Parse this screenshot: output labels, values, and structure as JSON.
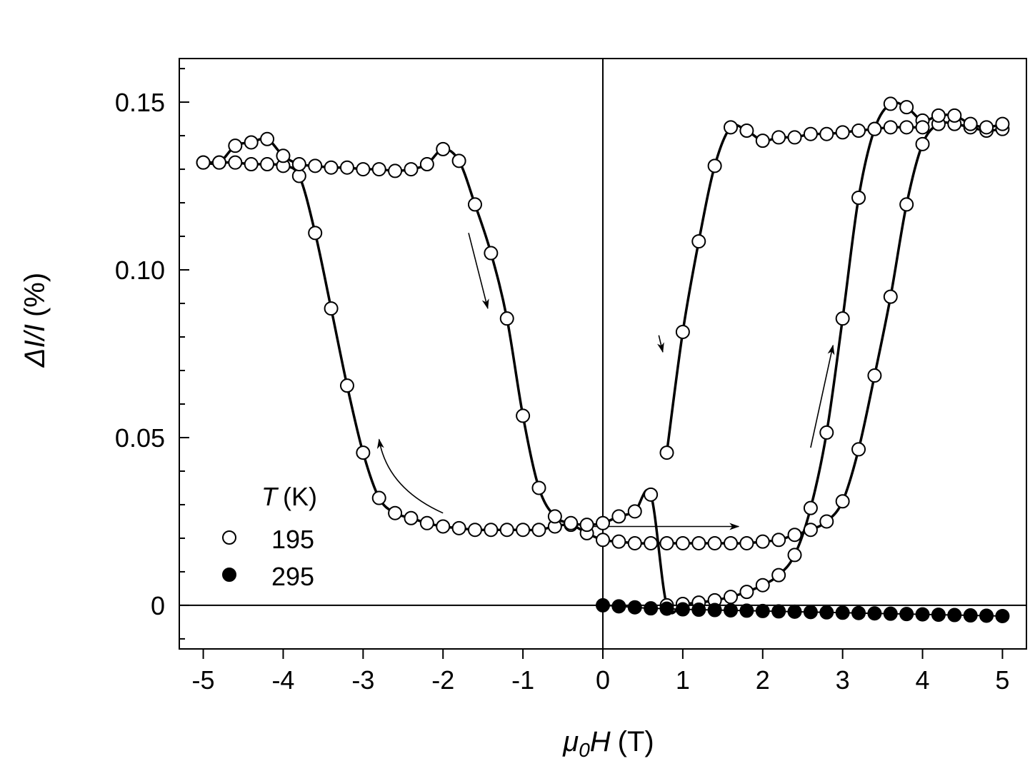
{
  "chart_data": {
    "type": "scatter",
    "xlabel": "μ0H (T)",
    "xlabel_parts": {
      "symbol": "μ",
      "sub": "0",
      "var": "H",
      "unit": "(T)"
    },
    "ylabel": "ΔI/I (%)",
    "ylabel_parts": {
      "symbol": "ΔI/I",
      "unit": "(%)"
    },
    "xlim": [
      -5.3,
      5.3
    ],
    "ylim": [
      -0.013,
      0.163
    ],
    "x_ticks": [
      -5,
      -4,
      -3,
      -2,
      -1,
      0,
      1,
      2,
      3,
      4,
      5
    ],
    "x_tick_labels": [
      "-5",
      "-4",
      "-3",
      "-2",
      "-1",
      "0",
      "1",
      "2",
      "3",
      "4",
      "5"
    ],
    "y_ticks": [
      0,
      0.05,
      0.1,
      0.15
    ],
    "y_tick_labels": [
      "0",
      "0.05",
      "0.10",
      "0.15"
    ],
    "grid": false,
    "zero_lines": true,
    "legend": {
      "title_var": "T",
      "title_unit": "(K)",
      "placement": "bottom-left",
      "entries": [
        "195",
        "295"
      ]
    },
    "series": [
      {
        "name": "195",
        "marker": "open-circle",
        "segments": [
          {
            "x": [
              -5.0,
              -4.8,
              -4.6,
              -4.4,
              -4.2,
              -4.0,
              -3.8,
              -3.6,
              -3.4,
              -3.2,
              -3.0,
              -2.8,
              -2.6,
              -2.4,
              -2.2,
              -2.0,
              -1.8,
              -1.6,
              -1.4,
              -1.2,
              -1.0,
              -0.8,
              -0.6,
              -0.4,
              -0.2,
              0.0,
              0.2,
              0.4,
              0.6,
              0.8,
              1.0,
              1.2,
              1.4,
              1.6,
              1.8,
              2.0,
              2.2,
              2.4,
              2.6,
              2.8,
              3.0,
              3.2,
              3.4,
              3.6,
              3.8,
              4.0,
              4.2,
              4.4,
              4.6,
              4.8,
              5.0
            ],
            "y": [
              0.132,
              0.132,
              0.132,
              0.1315,
              0.1315,
              0.131,
              0.128,
              0.111,
              0.0885,
              0.0655,
              0.0455,
              0.032,
              0.0275,
              0.026,
              0.0245,
              0.0235,
              0.023,
              0.0225,
              0.0225,
              0.0225,
              0.0225,
              0.0225,
              0.0235,
              0.024,
              0.0215,
              0.0195,
              0.019,
              0.0185,
              0.0185,
              0.0185,
              0.0185,
              0.0185,
              0.0185,
              0.0185,
              0.0185,
              0.019,
              0.0195,
              0.021,
              0.0225,
              0.025,
              0.031,
              0.0465,
              0.0685,
              0.092,
              0.1195,
              0.1375,
              0.1435,
              0.1435,
              0.1425,
              0.1415,
              0.142
            ]
          },
          {
            "x": [
              5.0,
              4.8,
              4.6,
              4.4,
              4.2,
              4.0,
              3.8,
              3.6,
              3.4,
              3.2,
              3.0,
              2.8,
              2.6,
              2.4,
              2.2,
              2.0,
              1.8,
              1.6,
              1.4,
              1.2,
              1.0,
              0.8,
              0.6,
              0.4,
              0.2,
              0.0,
              -0.2,
              -0.4,
              -0.6,
              -0.8,
              -1.0,
              -1.2,
              -1.4,
              -1.6,
              -1.8,
              -2.0,
              -2.2,
              -2.4,
              -2.6,
              -2.8,
              -3.0,
              -3.2,
              -3.4,
              -3.6,
              -3.8,
              -4.0,
              -4.2,
              -4.4,
              -4.6,
              -4.8,
              -5.0
            ],
            "y": [
              0.1435,
              0.1425,
              0.1435,
              0.146,
              0.146,
              0.1445,
              0.1485,
              0.1495,
              0.142,
              0.1215,
              0.0855,
              0.0515,
              0.029,
              0.015,
              0.009,
              0.006,
              0.004,
              0.0025,
              0.0015,
              0.0008,
              0.0004,
              0.0,
              0.033,
              0.028,
              0.0265,
              0.0245,
              0.024,
              0.0245,
              0.0265,
              0.035,
              0.0565,
              0.0855,
              0.105,
              0.1195,
              0.1325,
              0.136,
              0.1315,
              0.13,
              0.1295,
              0.13,
              0.13,
              0.1305,
              0.1305,
              0.131,
              0.1315,
              0.134,
              0.139,
              0.138,
              0.137,
              0.132,
              0.132
            ]
          },
          {
            "x": [
              0.8,
              1.0,
              1.2,
              1.4,
              1.6,
              1.8,
              2.0,
              2.2,
              2.4,
              2.6,
              2.8,
              3.0,
              3.2,
              3.4,
              3.6,
              3.8,
              4.0
            ],
            "y": [
              0.0455,
              0.0815,
              0.1085,
              0.131,
              0.1425,
              0.1415,
              0.1385,
              0.1395,
              0.1395,
              0.1405,
              0.1405,
              0.141,
              0.1415,
              0.142,
              0.1425,
              0.1425,
              0.1425
            ]
          }
        ]
      },
      {
        "name": "295",
        "marker": "filled-circle",
        "segments": [
          {
            "x": [
              0.0,
              0.2,
              0.4,
              0.6,
              0.8,
              1.0,
              1.2,
              1.4,
              1.6,
              1.8,
              2.0,
              2.2,
              2.4,
              2.6,
              2.8,
              3.0,
              3.2,
              3.4,
              3.6,
              3.8,
              4.0,
              4.2,
              4.4,
              4.6,
              4.8,
              5.0
            ],
            "y": [
              0.0,
              -0.0003,
              -0.0006,
              -0.0009,
              -0.001,
              -0.0012,
              -0.0013,
              -0.0014,
              -0.0015,
              -0.0016,
              -0.0017,
              -0.0018,
              -0.0019,
              -0.002,
              -0.0021,
              -0.0022,
              -0.0023,
              -0.0024,
              -0.0025,
              -0.0026,
              -0.0027,
              -0.0028,
              -0.0029,
              -0.003,
              -0.0031,
              -0.0032
            ]
          }
        ]
      }
    ],
    "annotations": [
      {
        "type": "arrow",
        "from": [
          -1.68,
          0.111
        ],
        "to": [
          -1.44,
          0.0885
        ]
      },
      {
        "type": "arrow",
        "curved": true,
        "from": [
          -2.0,
          0.0275
        ],
        "via": [
          -2.7,
          0.035
        ],
        "to": [
          -2.8,
          0.0495
        ]
      },
      {
        "type": "arrow",
        "from": [
          0.7,
          0.0805
        ],
        "to": [
          0.75,
          0.0755
        ]
      },
      {
        "type": "arrow",
        "from": [
          -0.2,
          0.0235
        ],
        "to": [
          1.7,
          0.0235
        ]
      },
      {
        "type": "arrow",
        "from": [
          2.6,
          0.047
        ],
        "to": [
          2.88,
          0.0775
        ]
      }
    ]
  }
}
